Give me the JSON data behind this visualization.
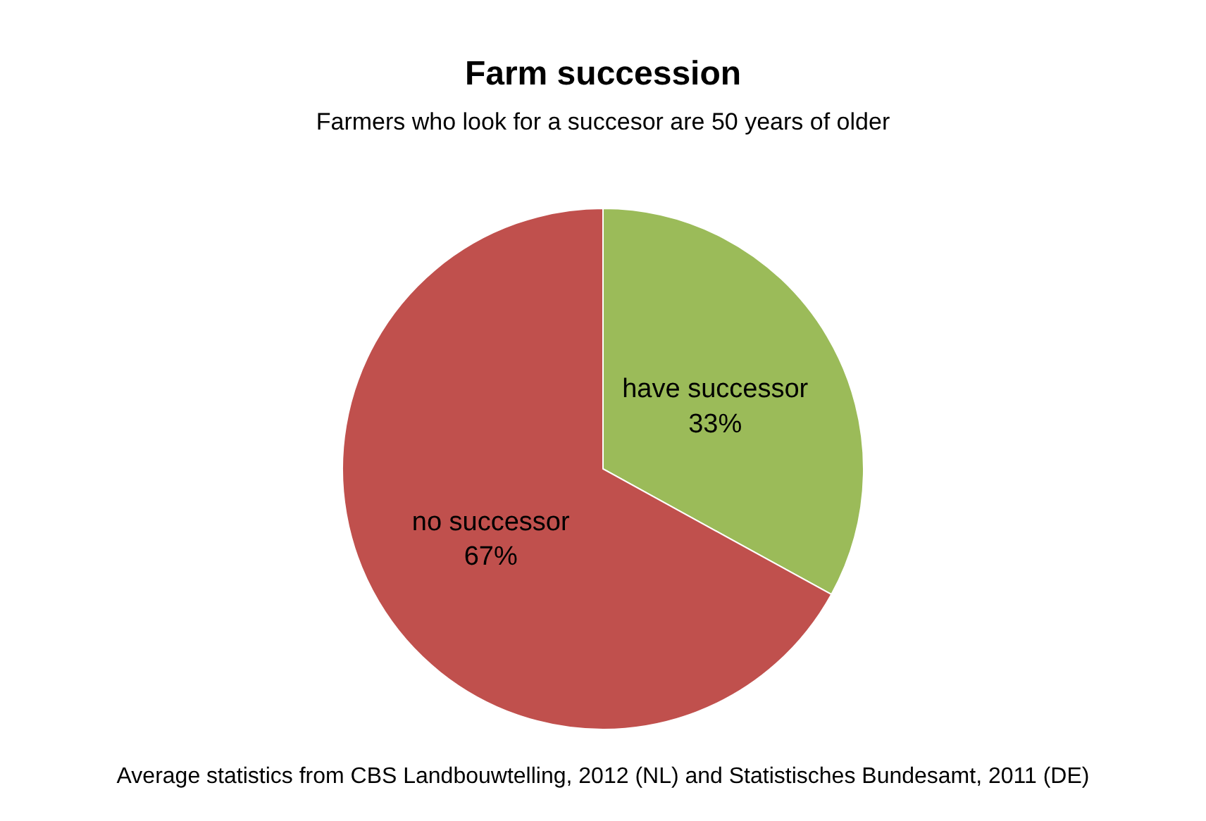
{
  "chart_data": {
    "type": "pie",
    "title": "Farm succession",
    "subtitle": "Farmers who look for a succesor are 50 years of older",
    "categories": [
      "have successor",
      "no successor"
    ],
    "values": [
      33,
      67
    ],
    "value_labels": [
      "33%",
      "67%"
    ],
    "colors": [
      "#9bbb59",
      "#c0504d"
    ],
    "annotations": [
      "Average statistics from CBS Landbouwtelling, 2012 (NL) and Statistisches Bundesamt, 2011 (DE)"
    ]
  }
}
